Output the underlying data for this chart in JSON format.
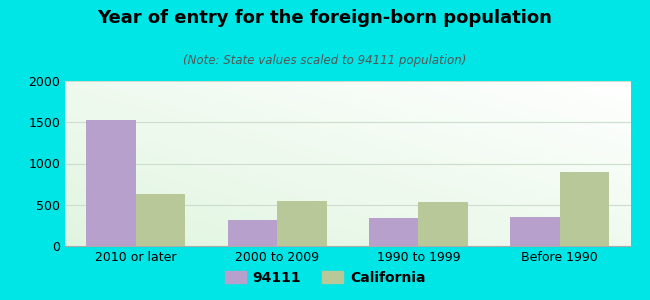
{
  "title": "Year of entry for the foreign-born population",
  "subtitle": "(Note: State values scaled to 94111 population)",
  "categories": [
    "2010 or later",
    "2000 to 2009",
    "1990 to 1999",
    "Before 1990"
  ],
  "series_94111": [
    1530,
    320,
    340,
    350
  ],
  "series_california": [
    630,
    545,
    535,
    900
  ],
  "color_94111": "#b8a0cc",
  "color_california": "#b8c899",
  "background_outer": "#00e5e5",
  "background_inner_tl": "#e8f5e8",
  "background_inner_br": "#f8fff8",
  "ylim": [
    0,
    2000
  ],
  "yticks": [
    0,
    500,
    1000,
    1500,
    2000
  ],
  "legend_label_94111": "94111",
  "legend_label_california": "California",
  "bar_width": 0.35,
  "grid_color": "#ccddcc",
  "title_fontsize": 13,
  "subtitle_fontsize": 8.5,
  "tick_fontsize": 9
}
